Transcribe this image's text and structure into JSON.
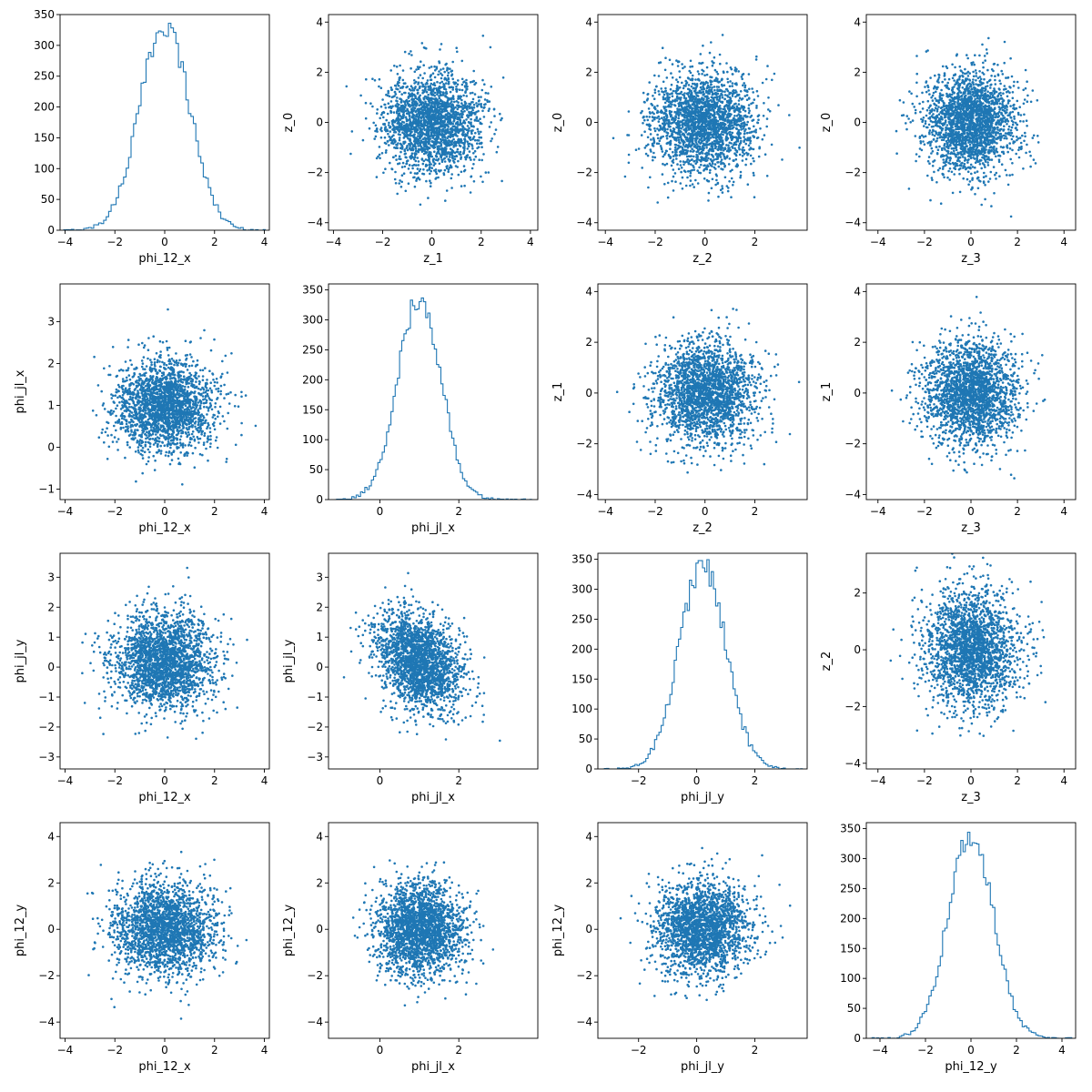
{
  "figure": {
    "background": "#ffffff",
    "series_color": "#1f77b4",
    "layout": "4x4 corner plot"
  },
  "chart_data": [
    {
      "row": 0,
      "col": 0,
      "type": "histogram",
      "xlabel": "phi_12_x",
      "ylabel": "",
      "xlim": [
        -4.2,
        4.2
      ],
      "ylim": [
        0,
        350
      ],
      "xticks": [
        -4,
        -2,
        0,
        2,
        4
      ],
      "yticks": [
        0,
        50,
        100,
        150,
        200,
        250,
        300,
        350
      ],
      "dist": {
        "mean": 0.0,
        "sd": 1.0,
        "peak": 335,
        "bin_width": 0.1
      }
    },
    {
      "row": 0,
      "col": 1,
      "type": "scatter",
      "xlabel": "z_1",
      "ylabel": "z_0",
      "xlim": [
        -4.2,
        4.3
      ],
      "ylim": [
        -4.3,
        4.3
      ],
      "xticks": [
        -4,
        -2,
        0,
        2,
        4
      ],
      "yticks": [
        -4,
        -2,
        0,
        2,
        4
      ],
      "dist": {
        "mx": 0,
        "sx": 1,
        "my": 0,
        "sy": 1,
        "rho": 0,
        "n": 2200,
        "seed": 11
      }
    },
    {
      "row": 0,
      "col": 2,
      "type": "scatter",
      "xlabel": "z_2",
      "ylabel": "z_0",
      "xlim": [
        -4.3,
        4.1
      ],
      "ylim": [
        -4.3,
        4.3
      ],
      "xticks": [
        -4,
        -2,
        0,
        2
      ],
      "yticks": [
        -4,
        -2,
        0,
        2,
        4
      ],
      "dist": {
        "mx": 0,
        "sx": 1,
        "my": 0,
        "sy": 1,
        "rho": 0,
        "n": 2200,
        "seed": 12
      }
    },
    {
      "row": 0,
      "col": 3,
      "type": "scatter",
      "xlabel": "z_3",
      "ylabel": "z_0",
      "xlim": [
        -4.5,
        4.5
      ],
      "ylim": [
        -4.3,
        4.3
      ],
      "xticks": [
        -4,
        -2,
        0,
        2,
        4
      ],
      "yticks": [
        -4,
        -2,
        0,
        2,
        4
      ],
      "dist": {
        "mx": 0,
        "sx": 1,
        "my": 0,
        "sy": 1,
        "rho": 0,
        "n": 2200,
        "seed": 13
      }
    },
    {
      "row": 1,
      "col": 0,
      "type": "scatter",
      "xlabel": "phi_12_x",
      "ylabel": "phi_jl_x",
      "xlim": [
        -4.2,
        4.2
      ],
      "ylim": [
        -1.25,
        3.9
      ],
      "xticks": [
        -4,
        -2,
        0,
        2,
        4
      ],
      "yticks": [
        -1,
        0,
        1,
        2,
        3
      ],
      "dist": {
        "mx": 0,
        "sx": 1,
        "my": 1,
        "sy": 0.55,
        "rho": 0,
        "n": 2200,
        "seed": 21
      }
    },
    {
      "row": 1,
      "col": 1,
      "type": "histogram",
      "xlabel": "phi_jl_x",
      "ylabel": "",
      "xlim": [
        -1.3,
        4.0
      ],
      "ylim": [
        0,
        360
      ],
      "xticks": [
        0,
        2
      ],
      "yticks": [
        0,
        50,
        100,
        150,
        200,
        250,
        300,
        350
      ],
      "dist": {
        "mean": 1.0,
        "sd": 0.55,
        "peak": 335,
        "bin_width": 0.055
      }
    },
    {
      "row": 1,
      "col": 2,
      "type": "scatter",
      "xlabel": "z_2",
      "ylabel": "z_1",
      "xlim": [
        -4.3,
        4.1
      ],
      "ylim": [
        -4.2,
        4.3
      ],
      "xticks": [
        -4,
        -2,
        0,
        2
      ],
      "yticks": [
        -4,
        -2,
        0,
        2,
        4
      ],
      "dist": {
        "mx": 0,
        "sx": 1,
        "my": 0,
        "sy": 1,
        "rho": 0,
        "n": 2200,
        "seed": 23
      }
    },
    {
      "row": 1,
      "col": 3,
      "type": "scatter",
      "xlabel": "z_3",
      "ylabel": "z_1",
      "xlim": [
        -4.5,
        4.5
      ],
      "ylim": [
        -4.2,
        4.3
      ],
      "xticks": [
        -4,
        -2,
        0,
        2,
        4
      ],
      "yticks": [
        -4,
        -2,
        0,
        2,
        4
      ],
      "dist": {
        "mx": 0,
        "sx": 1,
        "my": 0,
        "sy": 1,
        "rho": 0,
        "n": 2200,
        "seed": 24
      }
    },
    {
      "row": 2,
      "col": 0,
      "type": "scatter",
      "xlabel": "phi_12_x",
      "ylabel": "phi_jl_y",
      "xlim": [
        -4.2,
        4.2
      ],
      "ylim": [
        -3.4,
        3.8
      ],
      "xticks": [
        -4,
        -2,
        0,
        2,
        4
      ],
      "yticks": [
        -3,
        -2,
        -1,
        0,
        1,
        2,
        3
      ],
      "dist": {
        "mx": 0,
        "sx": 1,
        "my": 0.2,
        "sy": 0.8,
        "rho": 0,
        "n": 2200,
        "seed": 31
      }
    },
    {
      "row": 2,
      "col": 1,
      "type": "scatter",
      "xlabel": "phi_jl_x",
      "ylabel": "phi_jl_y",
      "xlim": [
        -1.3,
        4.0
      ],
      "ylim": [
        -3.4,
        3.8
      ],
      "xticks": [
        0,
        2
      ],
      "yticks": [
        -3,
        -2,
        -1,
        0,
        1,
        2,
        3
      ],
      "dist": {
        "mx": 1,
        "sx": 0.55,
        "my": 0.2,
        "sy": 0.8,
        "rho": -0.3,
        "n": 2200,
        "seed": 32
      }
    },
    {
      "row": 2,
      "col": 2,
      "type": "histogram",
      "xlabel": "phi_jl_y",
      "ylabel": "",
      "xlim": [
        -3.4,
        3.8
      ],
      "ylim": [
        0,
        360
      ],
      "xticks": [
        -2,
        0,
        2
      ],
      "yticks": [
        0,
        50,
        100,
        150,
        200,
        250,
        300,
        350
      ],
      "dist": {
        "mean": 0.2,
        "sd": 0.8,
        "peak": 340,
        "bin_width": 0.075
      }
    },
    {
      "row": 2,
      "col": 3,
      "type": "scatter",
      "xlabel": "z_3",
      "ylabel": "z_2",
      "xlim": [
        -4.5,
        4.5
      ],
      "ylim": [
        -4.2,
        3.4
      ],
      "xticks": [
        -4,
        -2,
        0,
        2,
        4
      ],
      "yticks": [
        -4,
        -2,
        0,
        2
      ],
      "dist": {
        "mx": 0,
        "sx": 1,
        "my": 0,
        "sy": 1,
        "rho": 0,
        "n": 2200,
        "seed": 34
      }
    },
    {
      "row": 3,
      "col": 0,
      "type": "scatter",
      "xlabel": "phi_12_x",
      "ylabel": "phi_12_y",
      "xlim": [
        -4.2,
        4.2
      ],
      "ylim": [
        -4.7,
        4.6
      ],
      "xticks": [
        -4,
        -2,
        0,
        2,
        4
      ],
      "yticks": [
        -4,
        -2,
        0,
        2,
        4
      ],
      "dist": {
        "mx": 0,
        "sx": 1,
        "my": 0,
        "sy": 1,
        "rho": 0,
        "n": 2200,
        "seed": 41
      }
    },
    {
      "row": 3,
      "col": 1,
      "type": "scatter",
      "xlabel": "phi_jl_x",
      "ylabel": "phi_12_y",
      "xlim": [
        -1.3,
        4.0
      ],
      "ylim": [
        -4.7,
        4.6
      ],
      "xticks": [
        0,
        2
      ],
      "yticks": [
        -4,
        -2,
        0,
        2,
        4
      ],
      "dist": {
        "mx": 1,
        "sx": 0.55,
        "my": 0,
        "sy": 1,
        "rho": 0,
        "n": 2200,
        "seed": 42
      }
    },
    {
      "row": 3,
      "col": 2,
      "type": "scatter",
      "xlabel": "phi_jl_y",
      "ylabel": "phi_12_y",
      "xlim": [
        -3.4,
        3.8
      ],
      "ylim": [
        -4.7,
        4.6
      ],
      "xticks": [
        -2,
        0,
        2
      ],
      "yticks": [
        -4,
        -2,
        0,
        2,
        4
      ],
      "dist": {
        "mx": 0.2,
        "sx": 0.8,
        "my": 0,
        "sy": 1,
        "rho": 0,
        "n": 2200,
        "seed": 43
      }
    },
    {
      "row": 3,
      "col": 3,
      "type": "histogram",
      "xlabel": "phi_12_y",
      "ylabel": "",
      "xlim": [
        -4.6,
        4.6
      ],
      "ylim": [
        0,
        360
      ],
      "xticks": [
        -4,
        -2,
        0,
        2,
        4
      ],
      "yticks": [
        0,
        50,
        100,
        150,
        200,
        250,
        300,
        350
      ],
      "dist": {
        "mean": 0.0,
        "sd": 1.0,
        "peak": 340,
        "bin_width": 0.1
      }
    }
  ]
}
